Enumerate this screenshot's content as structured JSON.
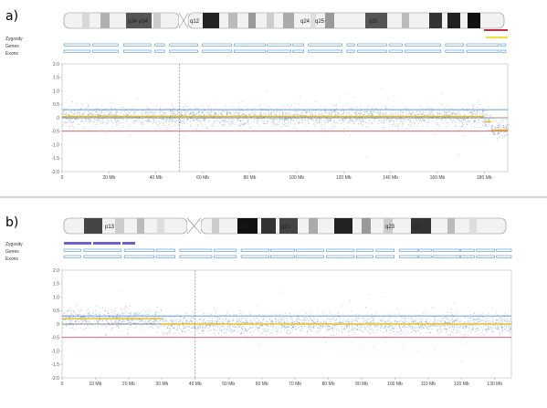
{
  "panels": [
    {
      "label": "a)",
      "track_labels": [
        "Zygosity",
        "Genes",
        "Exons"
      ],
      "band_labels": [
        "q34",
        "p34",
        "q12",
        "q24",
        "q25",
        "q31"
      ],
      "zygosity_color": "#c0304a",
      "cnv_color": "#f0e040"
    },
    {
      "label": "b)",
      "track_labels": [
        "Zygosity",
        "Genes",
        "Exons"
      ],
      "band_labels": [
        "p13",
        "q14",
        "q21",
        "q22",
        "q23",
        "q31"
      ],
      "zygosity_color": "#7060d0"
    }
  ],
  "chart_data": [
    {
      "type": "scatter",
      "title": "",
      "xlabel": "",
      "ylabel": "",
      "xlim": [
        0,
        190
      ],
      "ylim": [
        -2.0,
        2.0
      ],
      "x_tick_values": [
        0,
        20,
        40,
        60,
        80,
        100,
        120,
        140,
        160,
        180
      ],
      "x_tick_labels": [
        "0",
        "20 Mb",
        "40 Mb",
        "60 Mb",
        "80 Mb",
        "100 Mb",
        "120 Mb",
        "140 Mb",
        "160 Mb",
        "180 Mb"
      ],
      "y_tick_values": [
        2.0,
        1.5,
        1.0,
        0.5,
        0,
        -0.5,
        -1.0,
        -1.5,
        -2.0
      ],
      "y_tick_labels": [
        "2.0",
        "1.5",
        "1.0",
        "0.5",
        "0",
        "-0.5",
        "-1.0",
        "-1.5",
        "-2.0"
      ],
      "reference_lines": {
        "upper": 0.3,
        "lower": -0.5,
        "centromere_x": 50
      },
      "segments": [
        {
          "x0": 0,
          "x1": 180,
          "mean": 0.05
        },
        {
          "x0": 180,
          "x1": 183,
          "mean": -0.15
        },
        {
          "x0": 183,
          "x1": 190,
          "mean": -0.45
        }
      ]
    },
    {
      "type": "scatter",
      "title": "",
      "xlabel": "",
      "ylabel": "",
      "xlim": [
        0,
        135
      ],
      "ylim": [
        -2.0,
        2.0
      ],
      "x_tick_values": [
        0,
        10,
        20,
        30,
        40,
        50,
        60,
        70,
        80,
        90,
        100,
        110,
        120,
        130
      ],
      "x_tick_labels": [
        "0",
        "10 Mb",
        "20 Mb",
        "30 Mb",
        "40 Mb",
        "50 Mb",
        "60 Mb",
        "70 Mb",
        "80 Mb",
        "90 Mb",
        "100 Mb",
        "110 Mb",
        "120 Mb",
        "130 Mb"
      ],
      "y_tick_values": [
        2.0,
        1.5,
        1.0,
        0.5,
        0,
        -0.5,
        -1.0,
        -1.5,
        -2.0
      ],
      "y_tick_labels": [
        "2.0",
        "1.5",
        "1.0",
        "0.5",
        "0",
        "-0.5",
        "-1.0",
        "-1.5",
        "-2.0"
      ],
      "reference_lines": {
        "upper": 0.3,
        "lower": -0.5,
        "centromere_x": 40
      },
      "segments": [
        {
          "x0": 0,
          "x1": 30,
          "mean": 0.2
        },
        {
          "x0": 30,
          "x1": 135,
          "mean": 0.0
        }
      ]
    }
  ]
}
